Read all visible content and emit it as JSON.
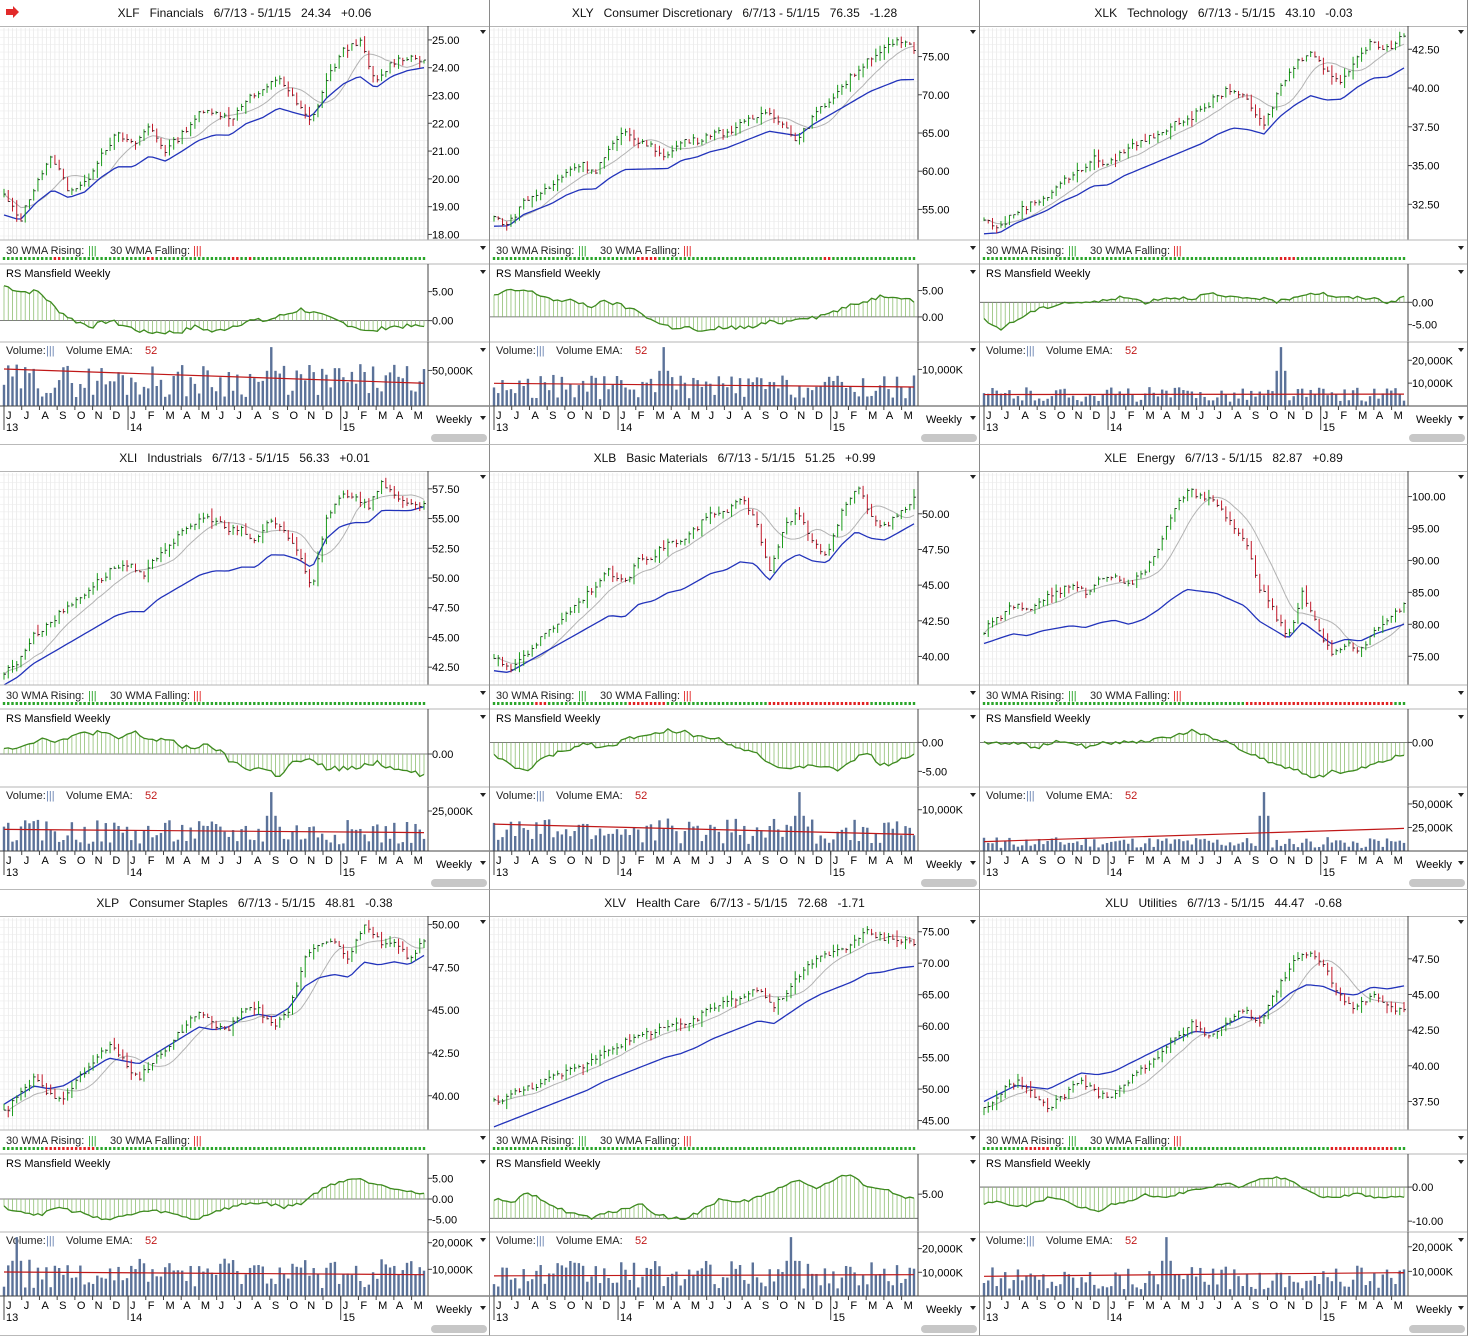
{
  "app": {
    "colors": {
      "up": "#1a9a1a",
      "down": "#c0192a",
      "sma_blue": "#2233bb",
      "sma_gray": "#b3b3b3",
      "rs_green": "#3d8a1e",
      "vol_bar": "#5b7299",
      "vol_ema": "#c01818",
      "rising_dot": "#2aa52a",
      "falling_dot": "#e02222",
      "grid": "#e2e2e2"
    },
    "icons": {
      "header_arrow": "red-right-arrow-icon",
      "menu": "dropdown-triangle-icon"
    },
    "labels": {
      "wma_rising": "30 WMA Rising:",
      "wma_falling": "30 WMA Falling:",
      "tick_mark": "|||",
      "rs": "RS Mansfield Weekly",
      "volume": "Volume:",
      "volume_ema": "Volume EMA:",
      "ema_period": "52",
      "period": "Weekly"
    },
    "x_axis": {
      "months": [
        "J",
        "J",
        "A",
        "S",
        "O",
        "N",
        "D",
        "J",
        "F",
        "M",
        "A",
        "M",
        "J",
        "J",
        "A",
        "S",
        "O",
        "N",
        "D",
        "J",
        "F",
        "M",
        "A",
        "M"
      ],
      "years": [
        "13",
        "14",
        "15"
      ]
    }
  },
  "chart_data": [
    {
      "type": "line",
      "symbol": "XLF",
      "name": "Financials",
      "range": "6/7/13 - 5/1/15",
      "last": "24.34",
      "change": "+0.06",
      "price_ticks": [
        "25.00",
        "24.00",
        "23.00",
        "22.00",
        "21.00",
        "20.00",
        "19.00",
        "18.00"
      ],
      "price_tick_values": [
        25,
        24,
        23,
        22,
        21,
        20,
        19,
        18
      ],
      "price_ylim": [
        17.8,
        25.5
      ],
      "price_path": [
        19.4,
        18.5,
        19.9,
        20.8,
        19.6,
        19.8,
        20.9,
        21.6,
        21.2,
        21.9,
        21.0,
        21.6,
        22.3,
        22.5,
        22.1,
        22.9,
        23.1,
        23.7,
        22.8,
        22.0,
        23.6,
        24.6,
        25.0,
        23.4,
        24.2,
        24.4,
        24.3
      ],
      "sma30_start": 18.7,
      "sma30_end": 24.0,
      "sma10_end": 24.1,
      "rs_ticks": [
        "5.00",
        "0.00"
      ],
      "rs_tick_values": [
        5,
        0
      ],
      "rs_ylim": [
        -3,
        7
      ],
      "rs_path": [
        6,
        5,
        5,
        2,
        0,
        -1,
        0,
        -1,
        -2,
        -2,
        -2,
        -1,
        -2,
        -1,
        0,
        0,
        1,
        2,
        1,
        0,
        -1,
        -2,
        -1,
        -1,
        -1
      ],
      "vol_ticks": [
        "50,000K"
      ],
      "vol_tick_values": [
        50000
      ],
      "vol_ylim": [
        0,
        90000
      ],
      "vol_level": 36000,
      "vol_ema_start": 52000,
      "vol_ema_end": 32000,
      "spike_index": 63,
      "falling_weeks": [
        12,
        13,
        34,
        35,
        54,
        55,
        58
      ]
    },
    {
      "type": "line",
      "symbol": "XLY",
      "name": "Consumer Discretionary",
      "range": "6/7/13 - 5/1/15",
      "last": "76.35",
      "change": "-1.28",
      "price_ticks": [
        "75.00",
        "70.00",
        "65.00",
        "60.00",
        "55.00"
      ],
      "price_tick_values": [
        75,
        70,
        65,
        60,
        55
      ],
      "price_ylim": [
        51,
        79
      ],
      "price_path": [
        54,
        53,
        56,
        57,
        58,
        60,
        61,
        60,
        63,
        65,
        64,
        63,
        62,
        64,
        64,
        65,
        65,
        66,
        67,
        68,
        66,
        64,
        67,
        69,
        71,
        73,
        75,
        76,
        77,
        76
      ],
      "sma30_start": 52.8,
      "sma30_end": 72.0,
      "sma10_end": 75.0,
      "rs_ticks": [
        "5.00",
        "0.00"
      ],
      "rs_tick_values": [
        5,
        0
      ],
      "rs_ylim": [
        -4,
        7
      ],
      "rs_path": [
        4,
        5,
        5,
        4,
        3,
        3,
        2,
        3,
        2,
        1,
        -1,
        -2,
        -2,
        -3,
        -2,
        -2,
        -2,
        -1,
        -1,
        0,
        0,
        1,
        2,
        3,
        4,
        4,
        3
      ],
      "vol_ticks": [
        "10,000K"
      ],
      "vol_tick_values": [
        10000
      ],
      "vol_ylim": [
        0,
        17500
      ],
      "vol_level": 5200,
      "vol_ema_start": 6200,
      "vol_ema_end": 5200,
      "spike_index": 40,
      "falling_weeks": [
        34,
        35,
        36,
        37,
        38,
        78,
        79
      ]
    },
    {
      "type": "line",
      "symbol": "XLK",
      "name": "Technology",
      "range": "6/7/13 - 5/1/15",
      "last": "43.10",
      "change": "-0.03",
      "price_ticks": [
        "42.50",
        "40.00",
        "37.50",
        "35.00",
        "32.50"
      ],
      "price_tick_values": [
        42.5,
        40,
        37.5,
        35,
        32.5
      ],
      "price_ylim": [
        30.2,
        44.0
      ],
      "price_path": [
        31.5,
        31.0,
        32.0,
        32.5,
        33.0,
        34.0,
        34.5,
        35.5,
        35.0,
        36.0,
        36.5,
        37.0,
        37.5,
        38.0,
        38.5,
        39.5,
        40.0,
        39.0,
        37.5,
        40.0,
        41.5,
        42.5,
        41.0,
        40.5,
        42.0,
        43.0,
        42.5,
        43.5
      ],
      "sma30_start": 30.6,
      "sma30_end": 41.3,
      "sma10_end": 42.3,
      "rs_ticks": [
        "0.00",
        "-5.00"
      ],
      "rs_tick_values": [
        0,
        -5
      ],
      "rs_ylim": [
        -8,
        5
      ],
      "rs_path": [
        -4,
        -6,
        -4,
        -2,
        -1,
        0,
        0,
        0,
        1,
        1,
        0,
        1,
        1,
        1,
        2,
        1,
        1,
        1,
        0,
        1,
        2,
        2,
        1,
        1,
        1,
        0,
        1
      ],
      "vol_ticks": [
        "20,000K",
        "10,000K"
      ],
      "vol_tick_values": [
        20000,
        10000
      ],
      "vol_ylim": [
        0,
        28000
      ],
      "vol_level": 5000,
      "vol_ema_start": 5000,
      "vol_ema_end": 5200,
      "spike_index": 70,
      "falling_weeks": [
        70,
        71,
        72,
        73
      ]
    },
    {
      "type": "line",
      "symbol": "XLI",
      "name": "Industrials",
      "range": "6/7/13 - 5/1/15",
      "last": "56.33",
      "change": "+0.01",
      "price_ticks": [
        "57.50",
        "55.00",
        "52.50",
        "50.00",
        "47.50",
        "45.00",
        "42.50"
      ],
      "price_tick_values": [
        57.5,
        55,
        52.5,
        50,
        47.5,
        45,
        42.5
      ],
      "price_ylim": [
        41.0,
        59.0
      ],
      "price_path": [
        42,
        43,
        45,
        46,
        47,
        48,
        49,
        50,
        51,
        51,
        50,
        52,
        53,
        54,
        55,
        55,
        54,
        54,
        53,
        55,
        54,
        52,
        49,
        55,
        57,
        57,
        56,
        58,
        57,
        56,
        56
      ],
      "sma30_start": 41.0,
      "sma30_end": 56.0,
      "sma10_end": 56.8,
      "rs_ticks": [
        "0.00"
      ],
      "rs_tick_values": [
        0
      ],
      "rs_ylim": [
        -4,
        4
      ],
      "rs_path": [
        1,
        1,
        2,
        2,
        2,
        3,
        3,
        2,
        3,
        2,
        2,
        1,
        1,
        1,
        -1,
        -2,
        -2,
        -3,
        -1,
        -1,
        -2,
        -2,
        -2,
        -1,
        -2,
        -2,
        -3
      ],
      "vol_ticks": [
        "25,000K"
      ],
      "vol_tick_values": [
        25000
      ],
      "vol_ylim": [
        0,
        40000
      ],
      "vol_level": 12000,
      "vol_ema_start": 13500,
      "vol_ema_end": 11500,
      "spike_index": 63,
      "falling_weeks": []
    },
    {
      "type": "line",
      "symbol": "XLB",
      "name": "Basic Materials",
      "range": "6/7/13 - 5/1/15",
      "last": "51.25",
      "change": "+0.99",
      "price_ticks": [
        "50.00",
        "47.50",
        "45.00",
        "42.50",
        "40.00"
      ],
      "price_tick_values": [
        50,
        47.5,
        45,
        42.5,
        40
      ],
      "price_ylim": [
        38.0,
        53.0
      ],
      "price_path": [
        40,
        39,
        40,
        41,
        42,
        43,
        44,
        45,
        46,
        45,
        47,
        47,
        48,
        48,
        49,
        50,
        50,
        51,
        50,
        46,
        49,
        50,
        48,
        47,
        50,
        52,
        50,
        49,
        50,
        51
      ],
      "sma30_start": 39.0,
      "sma30_end": 49.3,
      "sma10_end": 50.2,
      "rs_ticks": [
        "0.00",
        "-5.00"
      ],
      "rs_tick_values": [
        0,
        -5
      ],
      "rs_ylim": [
        -7,
        3
      ],
      "rs_path": [
        -2,
        -4,
        -5,
        -3,
        -2,
        -1,
        0,
        -1,
        0,
        1,
        1,
        2,
        2,
        1,
        1,
        0,
        -1,
        -2,
        -4,
        -5,
        -4,
        -4,
        -5,
        -3,
        -2,
        -4,
        -3,
        -2
      ],
      "vol_ticks": [
        "10,000K"
      ],
      "vol_tick_values": [
        10000
      ],
      "vol_ylim": [
        0,
        15500
      ],
      "vol_level": 4800,
      "vol_ema_start": 6500,
      "vol_ema_end": 4000,
      "spike_index": 72,
      "falling_weeks": [
        10,
        11,
        12,
        32,
        33,
        34,
        35,
        36,
        37,
        38,
        39,
        40,
        65,
        66,
        67,
        68,
        69,
        70,
        71,
        72,
        73,
        74,
        75,
        76,
        77,
        78,
        79,
        80,
        81,
        82,
        83,
        84,
        85,
        86,
        87,
        88
      ]
    },
    {
      "type": "line",
      "symbol": "XLE",
      "name": "Energy",
      "range": "6/7/13 - 5/1/15",
      "last": "82.87",
      "change": "+0.89",
      "price_ticks": [
        "100.00",
        "95.00",
        "90.00",
        "85.00",
        "80.00",
        "75.00"
      ],
      "price_tick_values": [
        100,
        95,
        90,
        85,
        80,
        75
      ],
      "price_ylim": [
        70.5,
        104.0
      ],
      "price_path": [
        79,
        81,
        83,
        82,
        84,
        85,
        86,
        85,
        87,
        88,
        86,
        88,
        92,
        97,
        101,
        100,
        99,
        96,
        93,
        86,
        82,
        78,
        85,
        80,
        75,
        77,
        76,
        79,
        81,
        83
      ],
      "sma30_start": 77.0,
      "sma30_end": 80.0,
      "sma10_end": 80.5,
      "rs_ticks": [
        "0.00"
      ],
      "rs_tick_values": [
        0
      ],
      "rs_ylim": [
        -7,
        3
      ],
      "rs_path": [
        0,
        0,
        0,
        -1,
        0,
        0,
        -1,
        0,
        0,
        0,
        1,
        1,
        2,
        1,
        0,
        -2,
        -3,
        -4,
        -5,
        -6,
        -5,
        -5,
        -4,
        -3,
        -2
      ],
      "vol_ticks": [
        "50,000K",
        "25,000K"
      ],
      "vol_tick_values": [
        50000,
        25000
      ],
      "vol_ylim": [
        0,
        68000
      ],
      "vol_level": 9000,
      "vol_ema_start": 10000,
      "vol_ema_end": 24000,
      "spike_index": 66,
      "falling_weeks": [
        62,
        63,
        64,
        65,
        66,
        67,
        68,
        69,
        70,
        71,
        72,
        73,
        74,
        75,
        76,
        77,
        78,
        79,
        80,
        81,
        82,
        83,
        84,
        85,
        86,
        87,
        88,
        89,
        90,
        91,
        92,
        93,
        94,
        95,
        96
      ]
    },
    {
      "type": "line",
      "symbol": "XLP",
      "name": "Consumer Staples",
      "range": "6/7/13 - 5/1/15",
      "last": "48.81",
      "change": "-0.38",
      "price_ticks": [
        "50.00",
        "47.50",
        "45.00",
        "42.50",
        "40.00"
      ],
      "price_tick_values": [
        50,
        47.5,
        45,
        42.5,
        40
      ],
      "price_ylim": [
        38.0,
        50.5
      ],
      "price_path": [
        39,
        40,
        41,
        40,
        40,
        41,
        42,
        43,
        42,
        41,
        42,
        43,
        44,
        45,
        44,
        44,
        45,
        45,
        44,
        45,
        48,
        49,
        49,
        48,
        50,
        49,
        49,
        48,
        49
      ],
      "sma30_start": 39.5,
      "sma30_end": 48.2,
      "sma10_end": 48.8,
      "rs_ticks": [
        "5.00",
        "0.00",
        "-5.00"
      ],
      "rs_tick_values": [
        5,
        0,
        -5
      ],
      "rs_ylim": [
        -7,
        7
      ],
      "rs_path": [
        -2,
        -3,
        -4,
        -2,
        -3,
        -4,
        -5,
        -4,
        -3,
        -3,
        -4,
        -5,
        -3,
        -2,
        -1,
        -1,
        -2,
        -1,
        2,
        4,
        5,
        4,
        3,
        2,
        1
      ],
      "vol_ticks": [
        "20,000K",
        "10,000K"
      ],
      "vol_tick_values": [
        20000,
        10000
      ],
      "vol_ylim": [
        0,
        24000
      ],
      "vol_level": 8500,
      "vol_ema_start": 9000,
      "vol_ema_end": 8000,
      "spike_index": 3,
      "falling_weeks": [
        10,
        11,
        12,
        13,
        14,
        15,
        16,
        17,
        18,
        19,
        20,
        21
      ]
    },
    {
      "type": "line",
      "symbol": "XLV",
      "name": "Health Care",
      "range": "6/7/13 - 5/1/15",
      "last": "72.68",
      "change": "-1.71",
      "price_ticks": [
        "75.00",
        "70.00",
        "65.00",
        "60.00",
        "55.00",
        "50.00",
        "45.00"
      ],
      "price_tick_values": [
        75,
        70,
        65,
        60,
        55,
        50,
        45
      ],
      "price_ylim": [
        43.5,
        77.5
      ],
      "price_path": [
        48,
        49,
        50,
        51,
        52,
        53,
        54,
        56,
        57,
        58,
        59,
        60,
        60,
        61,
        63,
        64,
        65,
        66,
        63,
        66,
        69,
        71,
        72,
        73,
        75,
        74,
        74,
        73
      ],
      "sma30_start": 44.0,
      "sma30_end": 69.5,
      "sma10_end": 72.6,
      "rs_ticks": [
        "5.00"
      ],
      "rs_tick_values": [
        5
      ],
      "rs_ylim": [
        -2,
        10
      ],
      "rs_path": [
        4,
        3,
        5,
        4,
        2,
        1,
        0,
        1,
        2,
        3,
        1,
        0,
        0,
        2,
        4,
        3,
        4,
        5,
        7,
        8,
        6,
        8,
        9,
        7,
        6,
        5,
        4
      ],
      "vol_ticks": [
        "20,000K",
        "10,000K"
      ],
      "vol_tick_values": [
        20000,
        10000
      ],
      "vol_ylim": [
        0,
        27000
      ],
      "vol_level": 9000,
      "vol_ema_start": 8500,
      "vol_ema_end": 9000,
      "spike_index": 70,
      "falling_weeks": []
    },
    {
      "type": "line",
      "symbol": "XLU",
      "name": "Utilities",
      "range": "6/7/13 - 5/1/15",
      "last": "44.47",
      "change": "-0.68",
      "price_ticks": [
        "47.50",
        "45.00",
        "42.50",
        "40.00",
        "37.50"
      ],
      "price_tick_values": [
        47.5,
        45,
        42.5,
        40,
        37.5
      ],
      "price_ylim": [
        35.5,
        50.5
      ],
      "price_path": [
        37,
        38,
        39,
        38,
        37,
        38,
        39,
        38,
        38,
        39,
        40,
        41,
        42,
        43,
        42,
        43,
        44,
        43,
        45,
        47,
        48,
        47,
        45,
        44,
        45,
        44,
        44
      ],
      "sma30_start": 37.5,
      "sma30_end": 45.6,
      "sma10_end": 45.0,
      "rs_ticks": [
        "0.00",
        "-10.00"
      ],
      "rs_tick_values": [
        0,
        -10
      ],
      "rs_ylim": [
        -12,
        5
      ],
      "rs_path": [
        -5,
        -4,
        -6,
        -5,
        -3,
        -4,
        -6,
        -7,
        -5,
        -4,
        -2,
        -3,
        -2,
        -1,
        0,
        1,
        0,
        2,
        3,
        2,
        -1,
        -3,
        -3,
        -2,
        -3,
        -3,
        -3
      ],
      "vol_ticks": [
        "20,000K",
        "10,000K"
      ],
      "vol_tick_values": [
        20000,
        10000
      ],
      "vol_ylim": [
        0,
        26000
      ],
      "vol_level": 7500,
      "vol_ema_start": 8000,
      "vol_ema_end": 9500,
      "spike_index": 43,
      "falling_weeks": [
        10,
        11,
        12,
        13,
        14,
        15,
        82,
        83,
        84,
        85,
        86,
        87,
        88,
        89,
        90,
        91,
        92,
        93,
        94,
        95,
        96
      ]
    }
  ]
}
